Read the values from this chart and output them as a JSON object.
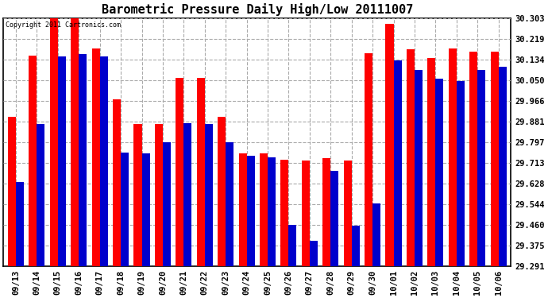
{
  "title": "Barometric Pressure Daily High/Low 20111007",
  "copyright": "Copyright 2011 Cartronics.com",
  "dates": [
    "09/13",
    "09/14",
    "09/15",
    "09/16",
    "09/17",
    "09/18",
    "09/19",
    "09/20",
    "09/21",
    "09/22",
    "09/23",
    "09/24",
    "09/25",
    "09/26",
    "09/27",
    "09/28",
    "09/29",
    "09/30",
    "10/01",
    "10/02",
    "10/03",
    "10/04",
    "10/05",
    "10/06"
  ],
  "highs": [
    29.9,
    30.15,
    30.31,
    30.31,
    30.18,
    29.97,
    29.87,
    29.87,
    30.06,
    30.06,
    29.9,
    29.75,
    29.75,
    29.725,
    29.72,
    29.73,
    29.72,
    30.16,
    30.28,
    30.175,
    30.14,
    30.18,
    30.165,
    30.165
  ],
  "lows": [
    29.635,
    29.87,
    30.145,
    30.155,
    30.145,
    29.755,
    29.75,
    29.795,
    29.875,
    29.87,
    29.795,
    29.74,
    29.735,
    29.46,
    29.395,
    29.68,
    29.455,
    29.545,
    30.13,
    30.09,
    30.055,
    30.045,
    30.09,
    30.105
  ],
  "ylim_min": 29.291,
  "ylim_max": 30.303,
  "yticks": [
    29.291,
    29.375,
    29.46,
    29.544,
    29.628,
    29.713,
    29.797,
    29.881,
    29.966,
    30.05,
    30.134,
    30.219,
    30.303
  ],
  "bar_width": 0.38,
  "high_color": "#ff0000",
  "low_color": "#0000cc",
  "bg_color": "#ffffff",
  "grid_color": "#aaaaaa",
  "title_fontsize": 11,
  "tick_fontsize": 7.5
}
